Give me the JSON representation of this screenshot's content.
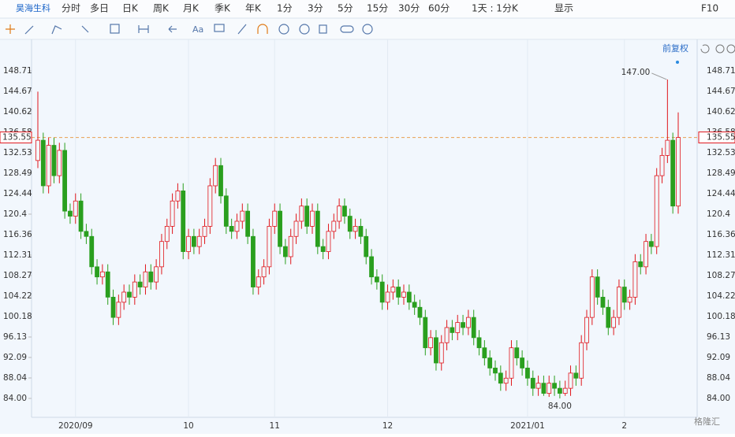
{
  "toolbar": {
    "stock": "昊海生科",
    "tabs": [
      "分时",
      "多日",
      "日K",
      "周K",
      "月K",
      "季K",
      "年K",
      "1分",
      "3分",
      "5分",
      "15分",
      "30分",
      "60分",
      "1天 : 1分K",
      "显示",
      "F10"
    ],
    "active_tab": 2,
    "text_tool": "Aa"
  },
  "chart_data": {
    "type": "candlestick",
    "adjust_label": "前复权",
    "categories": [
      null,
      null,
      null,
      null,
      null,
      null,
      null,
      "2020/09",
      null,
      null,
      null,
      null,
      null,
      null,
      null,
      null,
      null,
      null,
      null,
      null,
      null,
      null,
      null,
      null,
      null,
      null,
      null,
      null,
      "10",
      null,
      null,
      null,
      null,
      null,
      null,
      null,
      null,
      null,
      null,
      null,
      null,
      null,
      null,
      null,
      "11",
      null,
      null,
      null,
      null,
      null,
      null,
      null,
      null,
      null,
      null,
      null,
      null,
      null,
      null,
      null,
      null,
      null,
      null,
      null,
      null,
      "12",
      null,
      null,
      null,
      null,
      null,
      null,
      null,
      null,
      null,
      null,
      null,
      null,
      null,
      null,
      null,
      null,
      null,
      null,
      null,
      null,
      null,
      null,
      null,
      null,
      null,
      "2021/01",
      null,
      null,
      null,
      null,
      null,
      null,
      null,
      null,
      null,
      null,
      null,
      null,
      null,
      null,
      null,
      null,
      null,
      "2",
      null,
      null,
      null,
      null,
      null,
      null,
      null,
      null,
      null,
      null
    ],
    "open": [
      131,
      135,
      126,
      134,
      128,
      133,
      121,
      120,
      123,
      117,
      116,
      110,
      108,
      109,
      104,
      100,
      103,
      105,
      104,
      107,
      106,
      109,
      107,
      110,
      115,
      118,
      123,
      125,
      113,
      116,
      114,
      116,
      118,
      126,
      130,
      124,
      118,
      117,
      119,
      121,
      116,
      106,
      108,
      110,
      118,
      121,
      114,
      112,
      116,
      119,
      122,
      118,
      121,
      114,
      113,
      117,
      119,
      122,
      120,
      117,
      118,
      116,
      112,
      108,
      107,
      103,
      105,
      106,
      104,
      105,
      103,
      102,
      100,
      94,
      96,
      91,
      95,
      98,
      97,
      99,
      98,
      100,
      96,
      94,
      92,
      90,
      89,
      87,
      88,
      94,
      92,
      90,
      88,
      86,
      87,
      85,
      87,
      86,
      85,
      86,
      89,
      88,
      95,
      100,
      108,
      104,
      102,
      98,
      100,
      106,
      103,
      104,
      111,
      110,
      115,
      114,
      128,
      132,
      135,
      122
    ],
    "close": [
      135,
      126,
      134,
      128,
      133,
      121,
      120,
      123,
      117,
      116,
      110,
      108,
      109,
      104,
      100,
      103,
      105,
      104,
      107,
      106,
      109,
      107,
      110,
      115,
      118,
      123,
      125,
      113,
      116,
      114,
      116,
      118,
      126,
      130,
      124,
      118,
      117,
      119,
      121,
      116,
      106,
      108,
      110,
      118,
      121,
      114,
      112,
      116,
      119,
      122,
      118,
      121,
      114,
      113,
      117,
      119,
      122,
      120,
      117,
      118,
      116,
      112,
      108,
      107,
      103,
      105,
      106,
      104,
      105,
      103,
      102,
      100,
      94,
      96,
      91,
      95,
      98,
      97,
      99,
      98,
      100,
      96,
      94,
      92,
      90,
      89,
      87,
      88,
      94,
      92,
      90,
      88,
      86,
      87,
      85,
      87,
      86,
      85,
      86,
      89,
      88,
      95,
      100,
      108,
      104,
      102,
      98,
      100,
      106,
      103,
      104,
      111,
      110,
      115,
      114,
      128,
      132,
      135,
      122,
      135.55
    ],
    "high": [
      144.6,
      136.5,
      135.5,
      135.5,
      134.5,
      134.5,
      122.5,
      124.5,
      124.5,
      118.5,
      117.5,
      111.5,
      110.5,
      110.5,
      105.5,
      104.5,
      106.5,
      106.5,
      108.5,
      108.5,
      110.5,
      110.5,
      111.5,
      116.5,
      119.5,
      124.5,
      126.5,
      126.5,
      117.5,
      117.5,
      117.5,
      119.5,
      127.5,
      131.5,
      131.5,
      125.5,
      119.5,
      120.5,
      122.5,
      122.5,
      117.5,
      109.5,
      111.5,
      119.5,
      122.5,
      122.5,
      115.5,
      117.5,
      120.5,
      123.5,
      123.5,
      122.5,
      122.5,
      115.5,
      118.5,
      120.5,
      123.5,
      123.5,
      121.5,
      119.5,
      119.5,
      117.5,
      113.5,
      109.5,
      108.5,
      106.5,
      107.5,
      107.5,
      106.5,
      106.5,
      104.5,
      103.5,
      101.5,
      97.5,
      97.5,
      96.5,
      99.5,
      99.5,
      100.5,
      100.5,
      101.5,
      101.5,
      97.5,
      95.5,
      93.5,
      91.5,
      90.5,
      89.5,
      95.5,
      95.5,
      93.5,
      91.5,
      89.5,
      88.5,
      88.5,
      88.5,
      88.5,
      87.5,
      87.5,
      90.5,
      90.5,
      96.5,
      101.5,
      109.5,
      109.5,
      105.5,
      103.5,
      101.5,
      107.5,
      107.5,
      105.5,
      112.5,
      112.5,
      116.5,
      116.5,
      129.5,
      133.5,
      147,
      136.5,
      140.5
    ],
    "low": [
      129.5,
      124.5,
      124.5,
      126.5,
      126.5,
      119.5,
      118.5,
      118.5,
      115.5,
      114.5,
      108.5,
      106.5,
      106.5,
      102.5,
      98.5,
      98.5,
      101.5,
      102.5,
      102.5,
      104.5,
      104.5,
      105.5,
      105.5,
      108.5,
      113.5,
      116.5,
      121.5,
      111.5,
      111.5,
      112.5,
      112.5,
      114.5,
      116.5,
      124.5,
      122.5,
      116.5,
      115.5,
      115.5,
      117.5,
      114.5,
      104.5,
      104.5,
      106.5,
      108.5,
      116.5,
      112.5,
      110.5,
      110.5,
      114.5,
      117.5,
      116.5,
      116.5,
      112.5,
      111.5,
      111.5,
      115.5,
      117.5,
      118.5,
      115.5,
      115.5,
      114.5,
      110.5,
      106.5,
      105.5,
      101.5,
      101.5,
      103.5,
      102.5,
      102.5,
      101.5,
      100.5,
      98.5,
      92.5,
      92.5,
      89.5,
      89.5,
      93.5,
      95.5,
      95.5,
      96.5,
      96.5,
      94.5,
      92.5,
      90.5,
      88.5,
      87.5,
      85.5,
      85.5,
      86.5,
      90.5,
      88.5,
      86.5,
      84.5,
      84.5,
      84.5,
      84.3,
      84.5,
      84,
      84.5,
      84.5,
      86.5,
      86.5,
      93.5,
      98.5,
      102.5,
      100.5,
      96.5,
      96.5,
      98.5,
      101.5,
      101.5,
      102.5,
      108.5,
      108.5,
      112.5,
      112.5,
      126.5,
      130.5,
      120.5,
      120.5
    ],
    "up_color": "#e0161b",
    "down_color": "#2a9f1e",
    "ylim": [
      81.82,
      151.04
    ],
    "yticks": [
      {
        "value": 84,
        "label": "84.00"
      },
      88.04,
      92.09,
      96.13,
      100.18,
      104.22,
      108.27,
      112.31,
      116.36,
      120.4,
      124.44,
      128.49,
      132.53,
      136.58,
      140.62,
      144.67,
      148.71
    ],
    "last_price": 135.55,
    "high_marker": {
      "value": 147,
      "label": "147.00",
      "index": 117
    },
    "low_marker": {
      "value": 84,
      "label": "84.00",
      "index": 97
    }
  },
  "watermark": "格隆汇"
}
